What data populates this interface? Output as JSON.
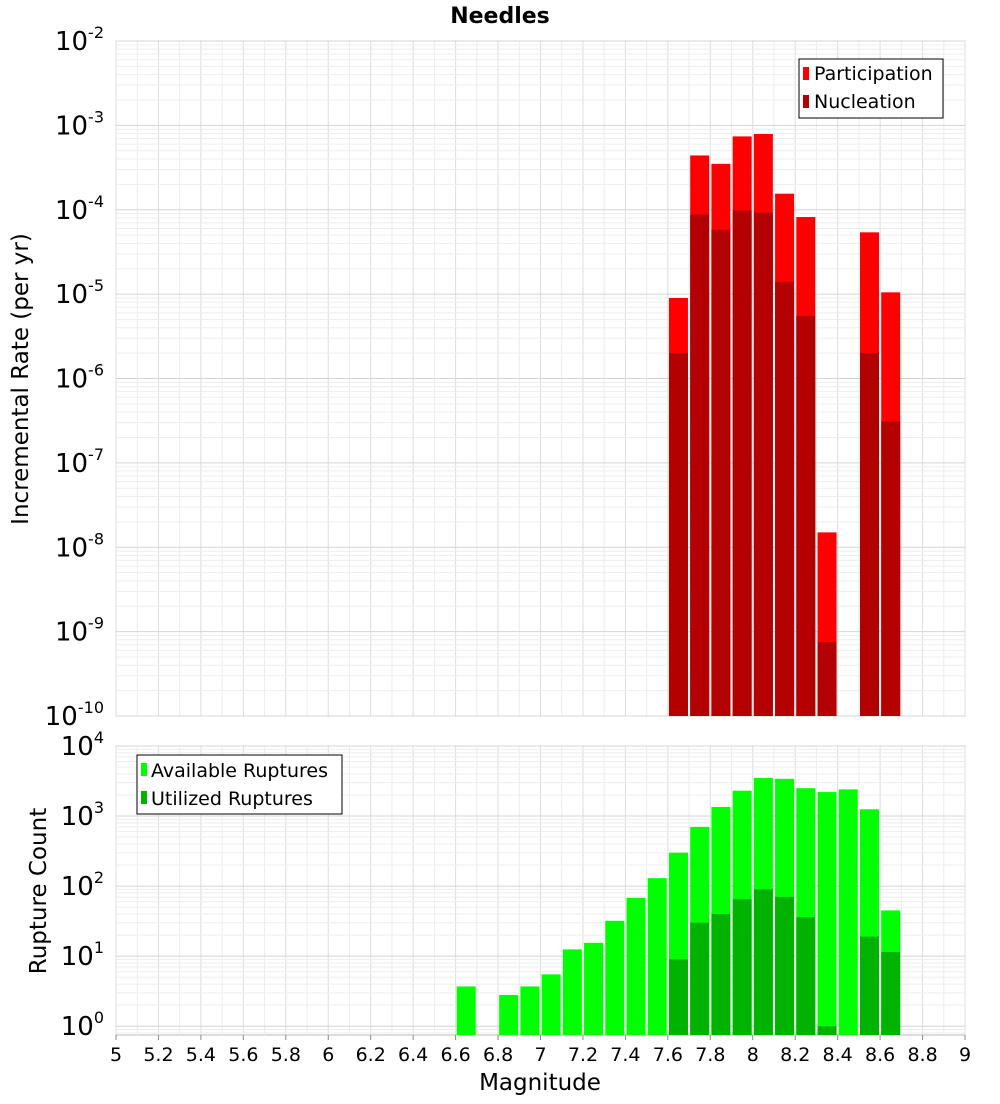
{
  "chart_data": [
    {
      "type": "bar",
      "title": "Needles",
      "xlabel": "",
      "ylabel": "Incremental Rate (per yr)",
      "yscale": "log",
      "ylim": [
        1e-10,
        0.01
      ],
      "xlim": [
        5,
        9
      ],
      "grid": true,
      "legend_position": "top-right",
      "y_tick_exponents": [
        "-10",
        "-9",
        "-8",
        "-7",
        "-6",
        "-5",
        "-4",
        "-3",
        "-2"
      ],
      "y_tick_base": "10",
      "x": [
        7.65,
        7.75,
        7.85,
        7.95,
        8.05,
        8.15,
        8.25,
        8.35,
        8.55,
        8.65
      ],
      "series": [
        {
          "name": "Participation",
          "color": "#ff0000",
          "values": [
            9e-06,
            0.00044,
            0.00035,
            0.00074,
            0.00079,
            0.000155,
            8.2e-05,
            1.5e-08,
            5.4e-05,
            1.05e-05
          ]
        },
        {
          "name": "Nucleation",
          "color": "#b30000",
          "values": [
            2e-06,
            8.8e-05,
            5.8e-05,
            9.8e-05,
            9.2e-05,
            1.4e-05,
            5.5e-06,
            7.5e-10,
            2e-06,
            3.1e-07
          ]
        }
      ]
    },
    {
      "type": "bar",
      "title": "",
      "xlabel": "Magnitude",
      "ylabel": "Rupture Count",
      "yscale": "log",
      "ylim": [
        0.75,
        10000
      ],
      "xlim": [
        5,
        9
      ],
      "grid": true,
      "legend_position": "top-left",
      "y_tick_exponents": [
        "0",
        "1",
        "2",
        "3",
        "4"
      ],
      "y_tick_base": "10",
      "x_tick_labels": [
        "5",
        "5.2",
        "5.4",
        "5.6",
        "5.8",
        "6",
        "6.2",
        "6.4",
        "6.6",
        "6.8",
        "7",
        "7.2",
        "7.4",
        "7.6",
        "7.8",
        "8",
        "8.2",
        "8.4",
        "8.6",
        "8.8",
        "9"
      ],
      "x": [
        6.65,
        6.85,
        6.95,
        7.05,
        7.15,
        7.25,
        7.35,
        7.45,
        7.55,
        7.65,
        7.75,
        7.85,
        7.95,
        8.05,
        8.15,
        8.25,
        8.35,
        8.45,
        8.55,
        8.65
      ],
      "series": [
        {
          "name": "Available Ruptures",
          "color": "#00ff00",
          "values": [
            3.7,
            2.8,
            3.7,
            5.5,
            12.5,
            15.5,
            32,
            68,
            130,
            300,
            700,
            1350,
            2300,
            3500,
            3400,
            2500,
            2200,
            2400,
            1250,
            45
          ]
        },
        {
          "name": "Utilized Ruptures",
          "color": "#00b300",
          "values": [
            null,
            null,
            null,
            null,
            null,
            null,
            null,
            null,
            null,
            9,
            30,
            40,
            65,
            90,
            70,
            36,
            1,
            null,
            19,
            11.5
          ]
        }
      ]
    }
  ]
}
